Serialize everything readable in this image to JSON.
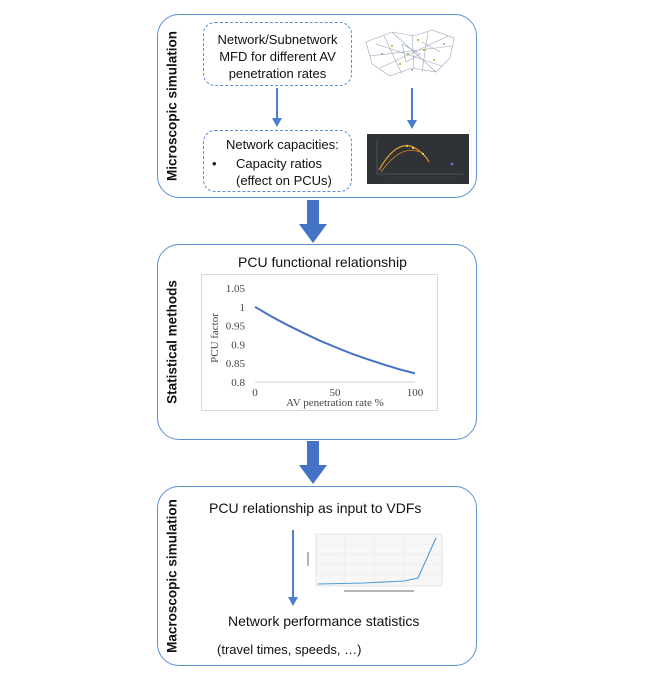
{
  "micro": {
    "label": "Microscopic simulation",
    "mfd_lines": [
      "Network/Subnetwork",
      "MFD for different AV",
      "penetration rates"
    ],
    "cap_title": "Network capacities:",
    "cap_bullet": "•",
    "cap_lines": [
      "Capacity ratios",
      "(effect on PCUs)"
    ]
  },
  "stat": {
    "label": "Statistical methods",
    "title": "PCU functional relationship"
  },
  "macro": {
    "label": "Macroscopic simulation",
    "input_text": "PCU relationship as input to VDFs",
    "perf_title": "Network performance statistics",
    "perf_sub": "(travel times, speeds, …)"
  },
  "chart_data": {
    "type": "line",
    "xlabel": "AV penetration rate %",
    "ylabel": "PCU factor",
    "xlim": [
      0,
      100
    ],
    "ylim": [
      0.8,
      1.05
    ],
    "xticks": [
      "0",
      "50",
      "100"
    ],
    "yticks": [
      "1.05",
      "1",
      "0.95",
      "0.9",
      "0.85",
      "0.8"
    ],
    "grid": false,
    "series": [
      {
        "x": [
          0,
          10,
          20,
          30,
          40,
          50,
          60,
          70,
          80,
          90,
          100
        ],
        "y": [
          1.0,
          0.975,
          0.952,
          0.931,
          0.911,
          0.893,
          0.876,
          0.861,
          0.847,
          0.834,
          0.823
        ],
        "color": "#4472c4"
      }
    ]
  },
  "colors": {
    "accent": "#5b8fd0",
    "arrow": "#4a7fd0",
    "curve": "#4472c4"
  }
}
